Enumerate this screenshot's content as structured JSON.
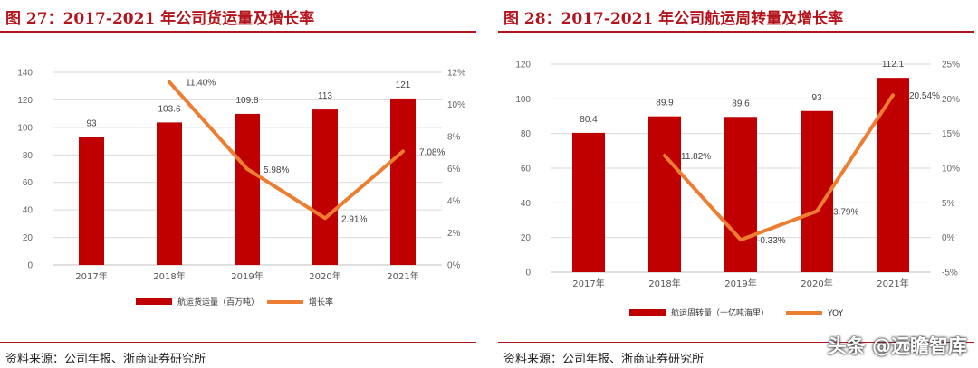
{
  "charts": [
    {
      "title": "图 27：2017-2021 年公司货运量及增长率",
      "source": "资料来源：公司年报、浙商证券研究所"
    },
    {
      "title": "图 28：2017-2021 年公司航运周转量及增长率",
      "source": "资料来源：公司年报、浙商证券研究所"
    }
  ],
  "watermark": "头条 @远瞻智库",
  "chart_data": [
    {
      "type": "bar",
      "title": "图 27：2017-2021 年公司货运量及增长率",
      "categories": [
        "2017年",
        "2018年",
        "2019年",
        "2020年",
        "2021年"
      ],
      "series": [
        {
          "name": "航运货运量（百万吨）",
          "type": "bar",
          "axis": "left",
          "values": [
            93,
            103.6,
            109.8,
            113,
            121
          ],
          "labels": [
            "93",
            "103.6",
            "109.8",
            "113",
            "121"
          ],
          "color": "#c00000"
        },
        {
          "name": "增长率",
          "type": "line",
          "axis": "right",
          "values": [
            null,
            11.4,
            5.98,
            2.91,
            7.08
          ],
          "labels": [
            "",
            "11.40%",
            "5.98%",
            "2.91%",
            "7.08%"
          ],
          "color": "#ed7d31"
        }
      ],
      "ylim": [
        0,
        140
      ],
      "yticks": [
        "0",
        "20",
        "40",
        "60",
        "80",
        "100",
        "120",
        "140"
      ],
      "y2lim": [
        0,
        12
      ],
      "y2ticks": [
        "0%",
        "2%",
        "4%",
        "6%",
        "8%",
        "10%",
        "12%"
      ],
      "legend_position": "bottom",
      "grid": true
    },
    {
      "type": "bar",
      "title": "图 28：2017-2021 年公司航运周转量及增长率",
      "categories": [
        "2017年",
        "2018年",
        "2019年",
        "2020年",
        "2021年"
      ],
      "series": [
        {
          "name": "航运周转量（十亿吨海里）",
          "type": "bar",
          "axis": "left",
          "values": [
            80.4,
            89.9,
            89.6,
            93,
            112.1
          ],
          "labels": [
            "80.4",
            "89.9",
            "89.6",
            "93",
            "112.1"
          ],
          "color": "#c00000"
        },
        {
          "name": "YOY",
          "type": "line",
          "axis": "right",
          "values": [
            null,
            11.82,
            -0.33,
            3.79,
            20.54
          ],
          "labels": [
            "",
            "11.82%",
            "-0.33%",
            "3.79%",
            "20.54%"
          ],
          "color": "#ed7d31"
        }
      ],
      "ylim": [
        0,
        120
      ],
      "yticks": [
        "0",
        "20",
        "40",
        "60",
        "80",
        "100",
        "120"
      ],
      "y2lim": [
        -5,
        25
      ],
      "y2ticks": [
        "-5%",
        "0%",
        "5%",
        "10%",
        "15%",
        "20%",
        "25%"
      ],
      "legend_position": "bottom",
      "grid": true
    }
  ]
}
